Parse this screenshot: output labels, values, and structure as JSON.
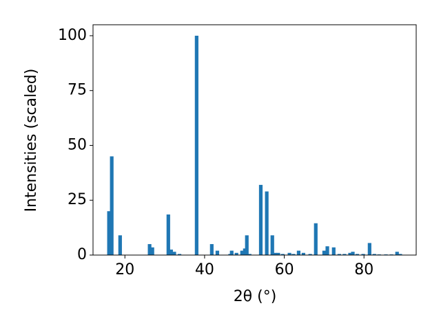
{
  "chart_data": {
    "type": "bar",
    "xlabel": "2θ (°)",
    "ylabel": "Intensities (scaled)",
    "color": "#1f77b4",
    "x": [
      16.0,
      16.7,
      18.8,
      26.2,
      26.9,
      30.9,
      31.6,
      32.4,
      33.7,
      38.0,
      41.8,
      43.2,
      46.4,
      46.8,
      48.0,
      49.4,
      50.1,
      50.6,
      51.3,
      54.1,
      55.6,
      57.0,
      57.7,
      58.5,
      59.6,
      61.3,
      62.3,
      63.6,
      64.8,
      66.5,
      67.9,
      70.0,
      70.8,
      72.4,
      73.8,
      75.1,
      76.5,
      77.2,
      78.3,
      79.8,
      81.4,
      82.6,
      83.8,
      85.5,
      86.9,
      88.3,
      89.1
    ],
    "values": [
      20,
      45,
      9,
      5,
      3.5,
      18.5,
      2.5,
      1.5,
      0.5,
      100,
      5,
      2,
      0.5,
      2,
      1,
      2,
      3,
      9,
      0.5,
      32,
      29,
      9,
      1,
      1,
      0.5,
      1,
      0.5,
      2,
      1,
      0.5,
      14.5,
      2,
      4,
      3.5,
      0.5,
      0.5,
      1,
      1.5,
      0.5,
      0.5,
      5.5,
      0.5,
      0.3,
      0.3,
      0.3,
      1.5,
      0.5
    ],
    "xlim": [
      12,
      93.1
    ],
    "ylim": [
      0,
      105
    ],
    "xticks": [
      20,
      40,
      60,
      80
    ],
    "yticks": [
      0,
      25,
      50,
      75,
      100
    ]
  }
}
